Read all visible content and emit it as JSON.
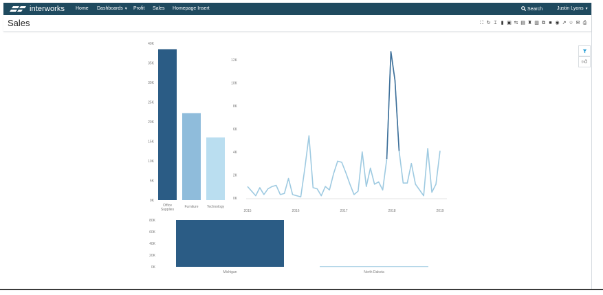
{
  "nav": {
    "brand": "interworks",
    "items": [
      {
        "label": "Home"
      },
      {
        "label": "Dashboards",
        "caret": "▾"
      },
      {
        "label": "Profit"
      },
      {
        "label": "Sales"
      },
      {
        "label": "Homepage Insert"
      }
    ],
    "search_label": "Search",
    "user_label": "Justin Lyons",
    "user_caret": "▾"
  },
  "page": {
    "title": "Sales"
  },
  "toolbar": {
    "icons": [
      "fullscreen-icon",
      "refresh-icon",
      "revert-icon",
      "pdf-icon",
      "image-icon",
      "crosstab-icon",
      "save-icon",
      "data-icon",
      "view-icon",
      "copy-icon",
      "embed-icon",
      "camera-icon",
      "share-icon",
      "favorite-icon",
      "email-icon",
      "print-icon"
    ]
  },
  "side": {
    "icons": [
      "filter-icon",
      "thumbs-up-icon"
    ]
  },
  "colors": {
    "nav": "#1f4a5f",
    "bar_dark": "#2b5c85",
    "bar_mid": "#8fbcdb",
    "bar_light": "#badef0",
    "line_light": "#9ecae1",
    "line_dark": "#3e6f99"
  },
  "chart_data": [
    {
      "type": "bar",
      "categories": [
        "Office Supplies",
        "Furniture",
        "Technology"
      ],
      "values": [
        38500,
        22200,
        16000
      ],
      "ylim": [
        0,
        40000
      ],
      "yticks": [
        "0K",
        "5K",
        "10K",
        "15K",
        "20K",
        "25K",
        "30K",
        "35K",
        "40K"
      ],
      "title": "",
      "xlabel": "",
      "ylabel": ""
    },
    {
      "type": "line",
      "x_ticks": [
        "2015",
        "2016",
        "2017",
        "2018",
        "2019"
      ],
      "yticks": [
        "0K",
        "2K",
        "4K",
        "6K",
        "8K",
        "10K",
        "12K"
      ],
      "ylim": [
        0,
        13000
      ],
      "x": [
        "2015-01",
        "2015-02",
        "2015-03",
        "2015-04",
        "2015-05",
        "2015-06",
        "2015-07",
        "2015-08",
        "2015-09",
        "2015-10",
        "2015-11",
        "2015-12",
        "2016-01",
        "2016-02",
        "2016-03",
        "2016-04",
        "2016-05",
        "2016-06",
        "2016-07",
        "2016-08",
        "2016-09",
        "2016-10",
        "2016-11",
        "2016-12",
        "2017-01",
        "2017-02",
        "2017-03",
        "2017-04",
        "2017-05",
        "2017-06",
        "2017-07",
        "2017-08",
        "2017-09",
        "2017-10",
        "2017-11",
        "2017-12",
        "2018-01",
        "2018-02",
        "2018-03",
        "2018-04",
        "2018-05",
        "2018-06",
        "2018-07",
        "2018-08",
        "2018-09",
        "2018-10",
        "2018-11",
        "2018-12"
      ],
      "values": [
        1000,
        600,
        200,
        900,
        300,
        800,
        1000,
        1100,
        300,
        400,
        1700,
        300,
        200,
        100,
        2600,
        5400,
        900,
        800,
        200,
        1000,
        700,
        2100,
        3200,
        3100,
        2200,
        1200,
        300,
        600,
        4000,
        1000,
        2600,
        1200,
        1400,
        700,
        3400,
        12700,
        10200,
        4100,
        1300,
        1300,
        3000,
        1200,
        700,
        200,
        4300,
        500,
        1200,
        4100
      ],
      "title": "",
      "xlabel": "",
      "ylabel": ""
    },
    {
      "type": "bar",
      "categories": [
        "Michigan",
        "North Dakota"
      ],
      "values": [
        80000,
        900
      ],
      "ylim": [
        0,
        80000
      ],
      "yticks": [
        "0K",
        "20K",
        "40K",
        "60K",
        "80K"
      ],
      "title": "",
      "xlabel": "",
      "ylabel": ""
    }
  ]
}
